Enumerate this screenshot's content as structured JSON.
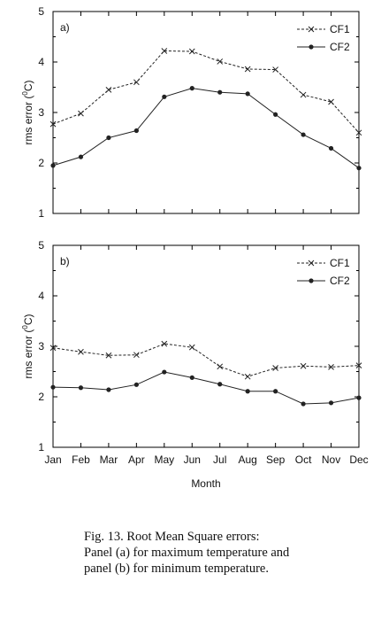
{
  "chart_data": [
    {
      "type": "line",
      "panel_label": "a)",
      "ylabel": "rms error (",
      "ylabel_sup": "0",
      "ylabel_end": "C)",
      "ylim": [
        1,
        5
      ],
      "yticks": [
        "1",
        "2",
        "3",
        "4",
        "5"
      ],
      "categories": [
        "Jan",
        "Feb",
        "Mar",
        "Apr",
        "May",
        "Jun",
        "Jul",
        "Aug",
        "Sep",
        "Oct",
        "Nov",
        "Dec"
      ],
      "series": [
        {
          "name": "CF1",
          "style": "dashed",
          "marker": "x",
          "values": [
            2.77,
            2.98,
            3.45,
            3.6,
            4.22,
            4.21,
            4.01,
            3.86,
            3.85,
            3.35,
            3.21,
            2.6
          ]
        },
        {
          "name": "CF2",
          "style": "solid",
          "marker": "dot",
          "values": [
            1.95,
            2.12,
            2.5,
            2.64,
            3.31,
            3.48,
            3.4,
            3.37,
            2.96,
            2.56,
            2.29,
            1.9
          ]
        }
      ],
      "legend": "top-right",
      "grid": false
    },
    {
      "type": "line",
      "panel_label": "b)",
      "ylabel": "rms error (",
      "ylabel_sup": "0",
      "ylabel_end": "C)",
      "xlabel": "Month",
      "ylim": [
        1,
        5
      ],
      "yticks": [
        "1",
        "2",
        "3",
        "4",
        "5"
      ],
      "categories": [
        "Jan",
        "Feb",
        "Mar",
        "Apr",
        "May",
        "Jun",
        "Jul",
        "Aug",
        "Sep",
        "Oct",
        "Nov",
        "Dec"
      ],
      "series": [
        {
          "name": "CF1",
          "style": "dashed",
          "marker": "x",
          "values": [
            2.97,
            2.89,
            2.82,
            2.83,
            3.05,
            2.98,
            2.6,
            2.4,
            2.57,
            2.61,
            2.59,
            2.62
          ]
        },
        {
          "name": "CF2",
          "style": "solid",
          "marker": "dot",
          "values": [
            2.19,
            2.18,
            2.14,
            2.24,
            2.49,
            2.38,
            2.25,
            2.11,
            2.11,
            1.86,
            1.88,
            1.98
          ]
        }
      ],
      "legend": "top-right",
      "grid": false
    }
  ],
  "caption": {
    "line1": "Fig. 13. Root Mean Square errors:",
    "line2": "Panel (a) for maximum temperature and",
    "line3": "panel (b) for minimum temperature."
  },
  "colors": {
    "line": "#222222",
    "axis": "#000000"
  }
}
